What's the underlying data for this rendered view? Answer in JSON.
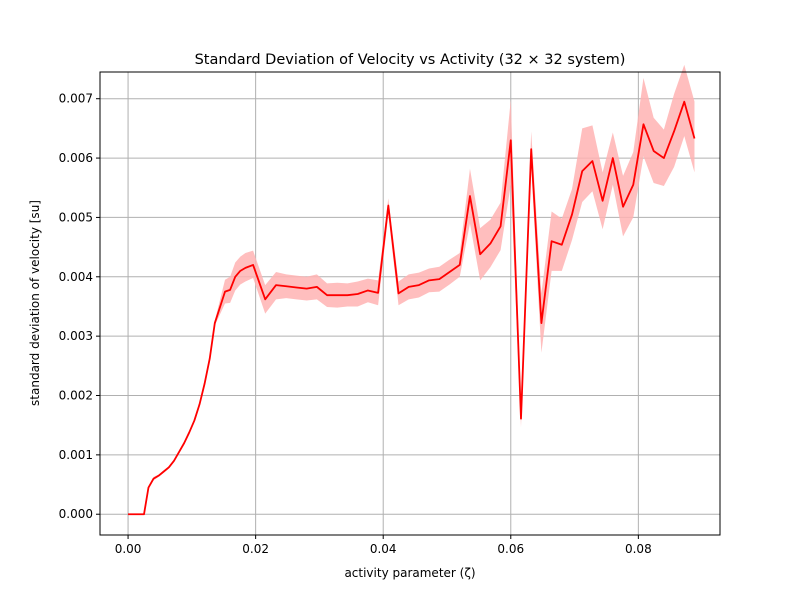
{
  "chart_data": {
    "type": "line",
    "title": "Standard Deviation of Velocity vs Activity (32 × 32 system)",
    "xlabel": "activity parameter (ζ)",
    "ylabel": "standard deviation of velocity [su]",
    "xlim": [
      -0.0044,
      0.0928
    ],
    "ylim": [
      -0.00035,
      0.00745
    ],
    "xticks": [
      0.0,
      0.02,
      0.04,
      0.06,
      0.08
    ],
    "xtick_labels": [
      "0.00",
      "0.02",
      "0.04",
      "0.06",
      "0.08"
    ],
    "yticks": [
      0.0,
      0.001,
      0.002,
      0.003,
      0.004,
      0.005,
      0.006,
      0.007
    ],
    "ytick_labels": [
      "0.000",
      "0.001",
      "0.002",
      "0.003",
      "0.004",
      "0.005",
      "0.006",
      "0.007"
    ],
    "grid": true,
    "line_color": "#ff0000",
    "band_color": "#ffb3b3",
    "series": [
      {
        "x": [
          0.0,
          0.0025,
          0.0032,
          0.004,
          0.0048,
          0.0056,
          0.0064,
          0.0072,
          0.008,
          0.0088,
          0.0096,
          0.0104,
          0.0112,
          0.012,
          0.0128,
          0.0136,
          0.0152,
          0.016,
          0.0168,
          0.0176,
          0.0184,
          0.0196,
          0.0215,
          0.0232,
          0.0248,
          0.0264,
          0.028,
          0.0296,
          0.0312,
          0.0328,
          0.0344,
          0.036,
          0.0376,
          0.0392,
          0.0408,
          0.0424,
          0.044,
          0.0456,
          0.0472,
          0.0488,
          0.0504,
          0.052,
          0.0536,
          0.0552,
          0.0568,
          0.0584,
          0.06,
          0.0616,
          0.0632,
          0.0648,
          0.0664,
          0.068,
          0.0696,
          0.0712,
          0.0728,
          0.0744,
          0.076,
          0.0776,
          0.0792,
          0.0808,
          0.0824,
          0.084,
          0.0856,
          0.0872,
          0.0888
        ],
        "y": [
          0.0,
          0.0,
          0.00045,
          0.0006,
          0.00065,
          0.00072,
          0.00079,
          0.0009,
          0.00105,
          0.0012,
          0.00138,
          0.00158,
          0.00185,
          0.0022,
          0.00262,
          0.00322,
          0.00375,
          0.00378,
          0.004,
          0.0041,
          0.00415,
          0.0042,
          0.00362,
          0.00386,
          0.00384,
          0.00382,
          0.0038,
          0.00383,
          0.00369,
          0.00369,
          0.00369,
          0.00371,
          0.00377,
          0.00373,
          0.0052,
          0.00372,
          0.00383,
          0.00386,
          0.00394,
          0.00396,
          0.00408,
          0.0042,
          0.00536,
          0.00438,
          0.00456,
          0.00485,
          0.0063,
          0.00161,
          0.00615,
          0.00322,
          0.0046,
          0.00454,
          0.00505,
          0.00578,
          0.00595,
          0.00528,
          0.006,
          0.00518,
          0.00555,
          0.00657,
          0.00612,
          0.006,
          0.00645,
          0.00695,
          0.00633
        ],
        "lower": [
          0.0,
          0.0,
          0.00043,
          0.00057,
          0.00063,
          0.0007,
          0.00077,
          0.00088,
          0.00103,
          0.00118,
          0.00136,
          0.00156,
          0.00183,
          0.00218,
          0.00259,
          0.00318,
          0.00355,
          0.00356,
          0.00377,
          0.00387,
          0.00392,
          0.00398,
          0.00338,
          0.00362,
          0.00364,
          0.00362,
          0.0036,
          0.00362,
          0.00349,
          0.00348,
          0.0035,
          0.0035,
          0.00357,
          0.00352,
          0.00505,
          0.00352,
          0.00362,
          0.00365,
          0.00374,
          0.00375,
          0.00387,
          0.004,
          0.0049,
          0.00394,
          0.00416,
          0.00445,
          0.00555,
          0.00147,
          0.00585,
          0.00272,
          0.0041,
          0.0041,
          0.00462,
          0.00526,
          0.00544,
          0.0048,
          0.00555,
          0.00468,
          0.005,
          0.00603,
          0.00558,
          0.00553,
          0.00585,
          0.00637,
          0.00576
        ],
        "upper": [
          0.0,
          0.0,
          0.00047,
          0.00063,
          0.00067,
          0.00074,
          0.00081,
          0.00092,
          0.00107,
          0.00122,
          0.0014,
          0.0016,
          0.00187,
          0.00222,
          0.00265,
          0.00326,
          0.00395,
          0.004,
          0.00424,
          0.00434,
          0.0044,
          0.00444,
          0.00386,
          0.00408,
          0.00404,
          0.00402,
          0.004,
          0.00404,
          0.00389,
          0.0039,
          0.00389,
          0.00392,
          0.00397,
          0.00394,
          0.00532,
          0.00392,
          0.00404,
          0.00407,
          0.00414,
          0.00417,
          0.00429,
          0.0044,
          0.00582,
          0.00482,
          0.00496,
          0.00525,
          0.00698,
          0.00176,
          0.00645,
          0.00372,
          0.0051,
          0.00498,
          0.00548,
          0.0065,
          0.00655,
          0.00576,
          0.00643,
          0.0057,
          0.0061,
          0.00735,
          0.00668,
          0.00648,
          0.00708,
          0.00757,
          0.00695
        ]
      }
    ]
  }
}
